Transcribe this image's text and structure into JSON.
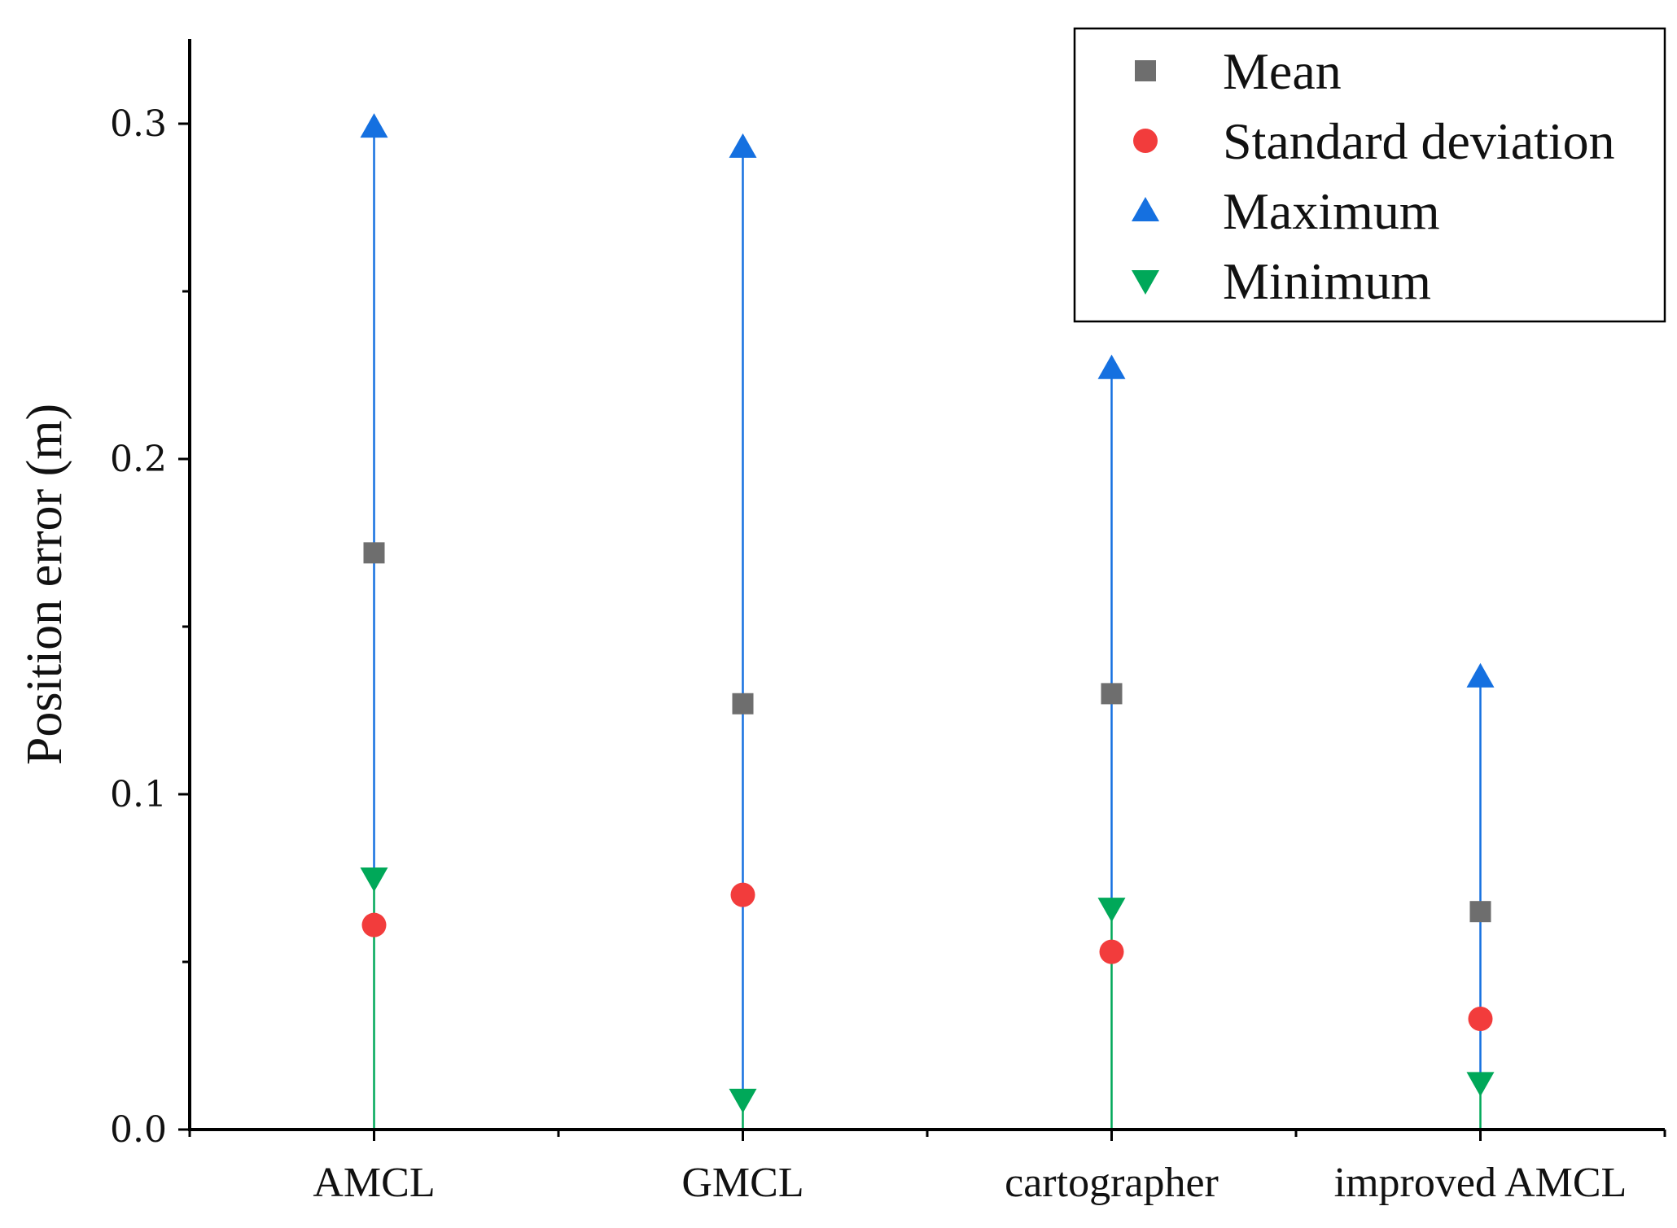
{
  "chart_data": {
    "type": "scatter",
    "title": "",
    "xlabel": "",
    "ylabel": "Position error (m)",
    "ylim": [
      0,
      0.325
    ],
    "y_ticks": [
      "0.0",
      "0.1",
      "0.2",
      "0.3"
    ],
    "y_tick_values": [
      0,
      0.1,
      0.2,
      0.3
    ],
    "categories": [
      "AMCL",
      "GMCL",
      "cartographer",
      "improved AMCL"
    ],
    "series": [
      {
        "name": "Mean",
        "marker": "square",
        "color": "#6e6e6e",
        "values": [
          0.172,
          0.127,
          0.13,
          0.065
        ]
      },
      {
        "name": "Standard deviation",
        "marker": "circle",
        "color": "#f23c3c",
        "values": [
          0.061,
          0.07,
          0.053,
          0.033
        ]
      },
      {
        "name": "Maximum",
        "marker": "triangle-up",
        "color": "#1570e0",
        "values": [
          0.299,
          0.293,
          0.227,
          0.135
        ]
      },
      {
        "name": "Minimum",
        "marker": "triangle-down",
        "color": "#00a859",
        "values": [
          0.075,
          0.009,
          0.066,
          0.014
        ]
      }
    ],
    "range_lines": [
      {
        "name": "max-range",
        "color": "#1570e0",
        "from": "Minimum",
        "to": "Maximum"
      },
      {
        "name": "min-range",
        "color": "#00a859",
        "from": 0,
        "to": "Minimum"
      }
    ],
    "grid": false,
    "legend": {
      "position": "top-right"
    }
  }
}
